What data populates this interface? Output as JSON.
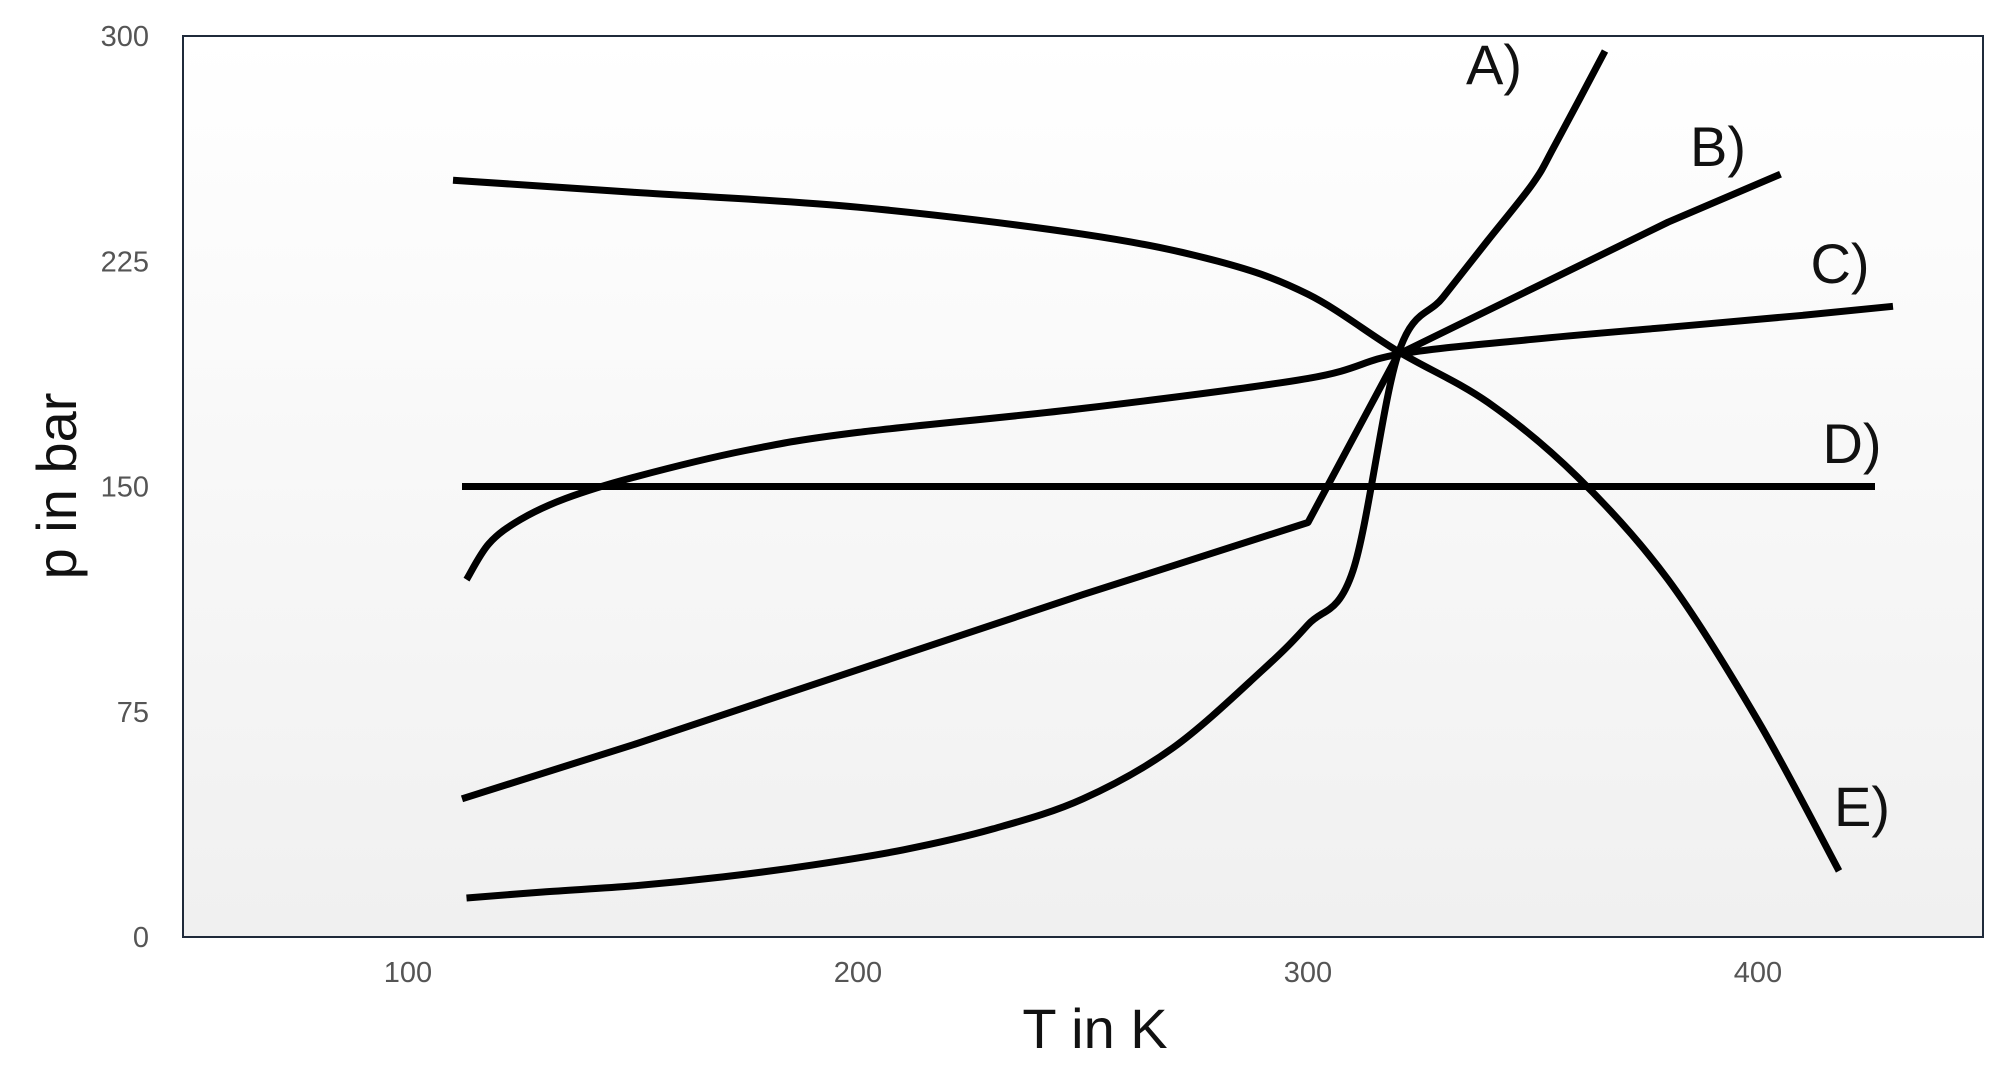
{
  "chart_data": {
    "type": "line",
    "xlabel": "T in K",
    "ylabel": "p in bar",
    "xlim": [
      50,
      450
    ],
    "ylim": [
      0,
      300
    ],
    "x_ticks": [
      100,
      200,
      300,
      400
    ],
    "y_ticks": [
      0,
      75,
      150,
      225,
      300
    ],
    "grid": false,
    "colors": {
      "line": "#000000",
      "frame": "#1f2a3a",
      "plot_bg_top": "#ffffff",
      "plot_bg_bottom": "#f0f0f0"
    },
    "series": [
      {
        "name": "A)",
        "x": [
          113,
          130,
          150,
          170,
          190,
          210,
          230,
          250,
          270,
          290,
          300,
          310,
          320,
          330,
          340,
          350,
          355,
          366
        ],
        "y": [
          13,
          15,
          17,
          20,
          24,
          29,
          36,
          46,
          63,
          89,
          104,
          122,
          194,
          213,
          232,
          251,
          264,
          295
        ]
      },
      {
        "name": "B)",
        "x": [
          112,
          150,
          200,
          250,
          300,
          320,
          350,
          380,
          405
        ],
        "y": [
          46,
          64,
          89,
          114,
          138,
          194,
          216,
          238,
          254
        ]
      },
      {
        "name": "C)",
        "x": [
          113,
          118,
          125,
          135,
          150,
          175,
          200,
          250,
          300,
          320,
          350,
          380,
          410,
          430
        ],
        "y": [
          119,
          131,
          139,
          146,
          153,
          162,
          168,
          176,
          186,
          194,
          199,
          203,
          207,
          210
        ]
      },
      {
        "name": "D)",
        "x": [
          112,
          200,
          300,
          426
        ],
        "y": [
          150,
          150,
          150,
          150
        ]
      },
      {
        "name": "E)",
        "x": [
          110,
          150,
          200,
          250,
          280,
          300,
          320,
          340,
          360,
          380,
          400,
          418
        ],
        "y": [
          252,
          248,
          243,
          234,
          225,
          214,
          195,
          178,
          153,
          119,
          72,
          22
        ]
      }
    ]
  }
}
